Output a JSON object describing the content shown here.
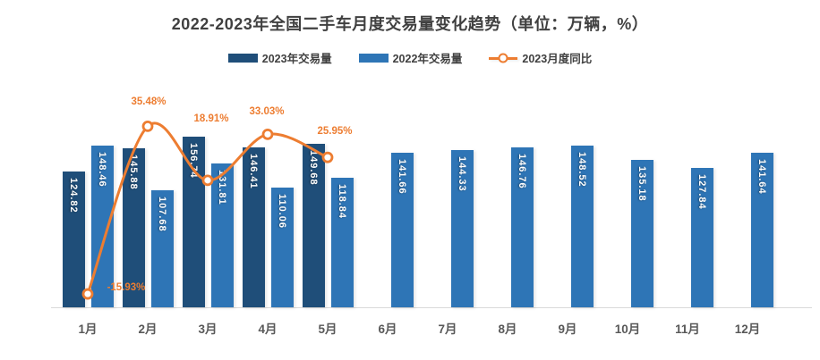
{
  "title": "2022-2023年全国二手车月度交易量变化趋势（单位：万辆，%）",
  "colors": {
    "bar_2023": "#1F4E79",
    "bar_2022": "#2E75B6",
    "yoy_line": "#ED7D31",
    "axis_line": "#D9D9D9",
    "axis_text": "#595959",
    "title_text": "#404040"
  },
  "chart_data": {
    "type": "bar",
    "subtype": "grouped-bars-with-line-overlay",
    "title": "2022-2023年全国二手车月度交易量变化趋势（单位：万辆，%）",
    "categories": [
      "1月",
      "2月",
      "3月",
      "4月",
      "5月",
      "6月",
      "7月",
      "8月",
      "9月",
      "10月",
      "11月",
      "12月"
    ],
    "series": [
      {
        "name": "2023年交易量",
        "type": "bar",
        "color": "#1F4E79",
        "values": [
          124.82,
          145.88,
          156.74,
          146.41,
          149.68,
          null,
          null,
          null,
          null,
          null,
          null,
          null
        ]
      },
      {
        "name": "2022年交易量",
        "type": "bar",
        "color": "#2E75B6",
        "values": [
          148.46,
          107.68,
          131.81,
          110.06,
          118.84,
          141.66,
          144.33,
          146.76,
          148.52,
          135.18,
          127.84,
          141.64
        ]
      },
      {
        "name": "2023月度同比",
        "type": "line",
        "color": "#ED7D31",
        "values": [
          -15.93,
          35.48,
          18.91,
          33.03,
          25.95,
          null,
          null,
          null,
          null,
          null,
          null,
          null
        ],
        "labels": [
          "-15.93%",
          "35.48%",
          "18.91%",
          "33.03%",
          "25.95%"
        ]
      }
    ],
    "value_axis": {
      "visible": false,
      "unit": "万辆"
    },
    "percent_axis": {
      "visible": false,
      "unit": "%"
    },
    "grid": false,
    "legend_position": "top-center",
    "bar_label_position": "inside-end-rotated-90",
    "line_smooth": true
  }
}
